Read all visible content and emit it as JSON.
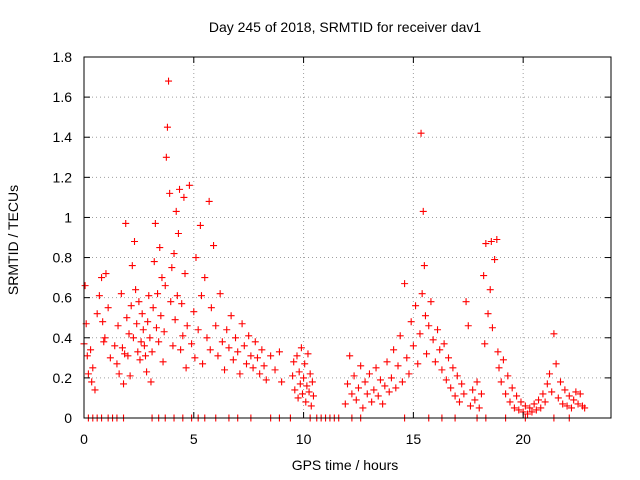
{
  "chart_data": {
    "type": "scatter",
    "title": "Day 245 of 2018, SRMTID for receiver dav1",
    "xlabel": "GPS time / hours",
    "ylabel": "SRMTID / TECUs",
    "xlim": [
      0,
      24
    ],
    "ylim": [
      0,
      1.8
    ],
    "xticks": [
      0,
      5,
      10,
      15,
      20
    ],
    "xtick_labels": [
      "0",
      "5",
      "10",
      "15",
      "20"
    ],
    "yticks": [
      0,
      0.2,
      0.4,
      0.6,
      0.8,
      1,
      1.2,
      1.4,
      1.6,
      1.8
    ],
    "ytick_labels": [
      "0",
      "0.2",
      "0.4",
      "0.6",
      "0.8",
      "1",
      "1.2",
      "1.4",
      "1.6",
      "1.8"
    ],
    "grid": true,
    "marker": "+",
    "series": [
      {
        "name": "dav1",
        "color": "#ff0000",
        "points": [
          [
            0.0,
            0.37
          ],
          [
            0.05,
            0.66
          ],
          [
            0.1,
            0.47
          ],
          [
            0.15,
            0.31
          ],
          [
            0.2,
            0.22
          ],
          [
            0.3,
            0.34
          ],
          [
            0.35,
            0.18
          ],
          [
            0.4,
            0.25
          ],
          [
            0.5,
            0.14
          ],
          [
            0.6,
            0.52
          ],
          [
            0.7,
            0.61
          ],
          [
            0.8,
            0.7
          ],
          [
            0.85,
            0.48
          ],
          [
            0.9,
            0.38
          ],
          [
            0.95,
            0.4
          ],
          [
            1.0,
            0.72
          ],
          [
            1.1,
            0.55
          ],
          [
            1.2,
            0.3
          ],
          [
            1.4,
            0.36
          ],
          [
            1.5,
            0.27
          ],
          [
            1.55,
            0.46
          ],
          [
            1.6,
            0.22
          ],
          [
            1.7,
            0.62
          ],
          [
            1.75,
            0.35
          ],
          [
            1.8,
            0.17
          ],
          [
            1.85,
            0.32
          ],
          [
            1.9,
            0.97
          ],
          [
            1.95,
            0.5
          ],
          [
            2.0,
            0.31
          ],
          [
            2.05,
            0.42
          ],
          [
            2.1,
            0.21
          ],
          [
            2.15,
            0.56
          ],
          [
            2.2,
            0.76
          ],
          [
            2.25,
            0.4
          ],
          [
            2.3,
            0.88
          ],
          [
            2.35,
            0.64
          ],
          [
            2.4,
            0.47
          ],
          [
            2.45,
            0.33
          ],
          [
            2.5,
            0.58
          ],
          [
            2.55,
            0.29
          ],
          [
            2.6,
            0.38
          ],
          [
            2.65,
            0.52
          ],
          [
            2.7,
            0.44
          ],
          [
            2.75,
            0.36
          ],
          [
            2.8,
            0.31
          ],
          [
            2.85,
            0.23
          ],
          [
            2.9,
            0.48
          ],
          [
            2.95,
            0.61
          ],
          [
            3.0,
            0.4
          ],
          [
            3.05,
            0.18
          ],
          [
            3.1,
            0.33
          ],
          [
            3.15,
            0.55
          ],
          [
            3.2,
            0.78
          ],
          [
            3.25,
            0.97
          ],
          [
            3.3,
            0.45
          ],
          [
            3.35,
            0.62
          ],
          [
            3.4,
            0.38
          ],
          [
            3.45,
            0.85
          ],
          [
            3.5,
            0.51
          ],
          [
            3.55,
            0.7
          ],
          [
            3.6,
            0.28
          ],
          [
            3.65,
            0.43
          ],
          [
            3.7,
            0.66
          ],
          [
            3.75,
            1.3
          ],
          [
            3.8,
            1.45
          ],
          [
            3.85,
            1.68
          ],
          [
            3.9,
            1.12
          ],
          [
            3.95,
            0.58
          ],
          [
            4.0,
            0.75
          ],
          [
            4.05,
            0.36
          ],
          [
            4.1,
            0.82
          ],
          [
            4.15,
            0.49
          ],
          [
            4.2,
            1.03
          ],
          [
            4.25,
            0.61
          ],
          [
            4.3,
            0.92
          ],
          [
            4.35,
            1.14
          ],
          [
            4.4,
            0.34
          ],
          [
            4.45,
            0.57
          ],
          [
            4.5,
            0.41
          ],
          [
            4.55,
            1.1
          ],
          [
            4.6,
            0.72
          ],
          [
            4.65,
            0.25
          ],
          [
            4.7,
            0.46
          ],
          [
            4.8,
            1.16
          ],
          [
            4.9,
            0.37
          ],
          [
            5.0,
            0.53
          ],
          [
            5.05,
            0.3
          ],
          [
            5.1,
            0.8
          ],
          [
            5.2,
            0.44
          ],
          [
            5.3,
            0.96
          ],
          [
            5.35,
            0.61
          ],
          [
            5.4,
            0.27
          ],
          [
            5.5,
            0.7
          ],
          [
            5.6,
            0.4
          ],
          [
            5.7,
            1.08
          ],
          [
            5.75,
            0.34
          ],
          [
            5.8,
            0.55
          ],
          [
            5.9,
            0.86
          ],
          [
            6.0,
            0.46
          ],
          [
            6.1,
            0.31
          ],
          [
            6.2,
            0.62
          ],
          [
            6.3,
            0.38
          ],
          [
            6.4,
            0.24
          ],
          [
            6.5,
            0.44
          ],
          [
            6.6,
            0.35
          ],
          [
            6.7,
            0.51
          ],
          [
            6.8,
            0.29
          ],
          [
            6.9,
            0.4
          ],
          [
            7.0,
            0.33
          ],
          [
            7.1,
            0.22
          ],
          [
            7.2,
            0.47
          ],
          [
            7.3,
            0.36
          ],
          [
            7.4,
            0.27
          ],
          [
            7.5,
            0.41
          ],
          [
            7.6,
            0.31
          ],
          [
            7.7,
            0.25
          ],
          [
            7.8,
            0.38
          ],
          [
            7.9,
            0.3
          ],
          [
            8.0,
            0.22
          ],
          [
            8.1,
            0.34
          ],
          [
            8.2,
            0.26
          ],
          [
            8.3,
            0.19
          ],
          [
            8.5,
            0.31
          ],
          [
            8.7,
            0.24
          ],
          [
            8.9,
            0.33
          ],
          [
            9.0,
            0.18
          ],
          [
            9.5,
            0.21
          ],
          [
            9.55,
            0.28
          ],
          [
            9.6,
            0.14
          ],
          [
            9.7,
            0.31
          ],
          [
            9.75,
            0.1
          ],
          [
            9.8,
            0.23
          ],
          [
            9.85,
            0.17
          ],
          [
            9.9,
            0.35
          ],
          [
            9.95,
            0.12
          ],
          [
            10.0,
            0.2
          ],
          [
            10.05,
            0.27
          ],
          [
            10.1,
            0.08
          ],
          [
            10.15,
            0.16
          ],
          [
            10.2,
            0.32
          ],
          [
            10.25,
            0.13
          ],
          [
            10.3,
            0.22
          ],
          [
            10.35,
            0.06
          ],
          [
            10.4,
            0.18
          ],
          [
            10.45,
            0.11
          ],
          [
            11.9,
            0.07
          ],
          [
            12.0,
            0.17
          ],
          [
            12.1,
            0.31
          ],
          [
            12.2,
            0.12
          ],
          [
            12.3,
            0.21
          ],
          [
            12.4,
            0.09
          ],
          [
            12.5,
            0.15
          ],
          [
            12.6,
            0.26
          ],
          [
            12.7,
            0.05
          ],
          [
            12.8,
            0.18
          ],
          [
            12.9,
            0.12
          ],
          [
            13.0,
            0.22
          ],
          [
            13.1,
            0.08
          ],
          [
            13.2,
            0.14
          ],
          [
            13.3,
            0.25
          ],
          [
            13.4,
            0.11
          ],
          [
            13.5,
            0.19
          ],
          [
            13.6,
            0.07
          ],
          [
            13.7,
            0.16
          ],
          [
            13.8,
            0.28
          ],
          [
            13.9,
            0.13
          ],
          [
            14.0,
            0.2
          ],
          [
            14.1,
            0.34
          ],
          [
            14.2,
            0.15
          ],
          [
            14.3,
            0.26
          ],
          [
            14.4,
            0.41
          ],
          [
            14.5,
            0.18
          ],
          [
            14.6,
            0.67
          ],
          [
            14.7,
            0.3
          ],
          [
            14.8,
            0.22
          ],
          [
            14.9,
            0.48
          ],
          [
            15.0,
            0.36
          ],
          [
            15.1,
            0.56
          ],
          [
            15.2,
            0.27
          ],
          [
            15.3,
            0.42
          ],
          [
            15.35,
            1.42
          ],
          [
            15.4,
            0.62
          ],
          [
            15.45,
            1.03
          ],
          [
            15.5,
            0.76
          ],
          [
            15.55,
            0.51
          ],
          [
            15.6,
            0.32
          ],
          [
            15.7,
            0.46
          ],
          [
            15.8,
            0.58
          ],
          [
            15.9,
            0.39
          ],
          [
            16.0,
            0.28
          ],
          [
            16.1,
            0.44
          ],
          [
            16.2,
            0.34
          ],
          [
            16.3,
            0.24
          ],
          [
            16.4,
            0.37
          ],
          [
            16.5,
            0.19
          ],
          [
            16.6,
            0.3
          ],
          [
            16.7,
            0.15
          ],
          [
            16.8,
            0.25
          ],
          [
            16.9,
            0.11
          ],
          [
            17.0,
            0.21
          ],
          [
            17.1,
            0.08
          ],
          [
            17.2,
            0.17
          ],
          [
            17.3,
            0.12
          ],
          [
            17.4,
            0.58
          ],
          [
            17.5,
            0.46
          ],
          [
            17.6,
            0.06
          ],
          [
            17.7,
            0.14
          ],
          [
            17.8,
            0.09
          ],
          [
            17.9,
            0.18
          ],
          [
            18.0,
            0.05
          ],
          [
            18.1,
            0.12
          ],
          [
            18.2,
            0.71
          ],
          [
            18.25,
            0.37
          ],
          [
            18.3,
            0.87
          ],
          [
            18.4,
            0.52
          ],
          [
            18.5,
            0.64
          ],
          [
            18.55,
            0.88
          ],
          [
            18.6,
            0.45
          ],
          [
            18.7,
            0.79
          ],
          [
            18.8,
            0.89
          ],
          [
            18.85,
            0.33
          ],
          [
            18.9,
            0.25
          ],
          [
            19.0,
            0.18
          ],
          [
            19.1,
            0.29
          ],
          [
            19.2,
            0.12
          ],
          [
            19.3,
            0.21
          ],
          [
            19.4,
            0.08
          ],
          [
            19.5,
            0.15
          ],
          [
            19.6,
            0.05
          ],
          [
            19.7,
            0.11
          ],
          [
            19.8,
            0.04
          ],
          [
            19.9,
            0.08
          ],
          [
            20.0,
            0.03
          ],
          [
            20.1,
            0.06
          ],
          [
            20.2,
            0.02
          ],
          [
            20.3,
            0.05
          ],
          [
            20.4,
            0.03
          ],
          [
            20.5,
            0.07
          ],
          [
            20.6,
            0.04
          ],
          [
            20.7,
            0.09
          ],
          [
            20.8,
            0.05
          ],
          [
            20.9,
            0.12
          ],
          [
            21.0,
            0.08
          ],
          [
            21.1,
            0.17
          ],
          [
            21.2,
            0.22
          ],
          [
            21.3,
            0.13
          ],
          [
            21.4,
            0.42
          ],
          [
            21.5,
            0.27
          ],
          [
            21.6,
            0.1
          ],
          [
            21.7,
            0.18
          ],
          [
            21.8,
            0.07
          ],
          [
            21.9,
            0.14
          ],
          [
            22.0,
            0.06
          ],
          [
            22.1,
            0.11
          ],
          [
            22.2,
            0.05
          ],
          [
            22.3,
            0.09
          ],
          [
            22.4,
            0.13
          ],
          [
            22.5,
            0.07
          ],
          [
            22.6,
            0.12
          ],
          [
            22.7,
            0.06
          ],
          [
            22.8,
            0.05
          ],
          [
            0.2,
            0.0
          ],
          [
            0.4,
            0.0
          ],
          [
            0.6,
            0.0
          ],
          [
            0.8,
            0.0
          ],
          [
            1.1,
            0.0
          ],
          [
            1.3,
            0.0
          ],
          [
            1.5,
            0.0
          ],
          [
            1.8,
            0.0
          ],
          [
            3.1,
            0.0
          ],
          [
            3.4,
            0.0
          ],
          [
            3.7,
            0.0
          ],
          [
            4.1,
            0.0
          ],
          [
            4.5,
            0.0
          ],
          [
            4.9,
            0.0
          ],
          [
            5.2,
            0.0
          ],
          [
            5.5,
            0.0
          ],
          [
            6.0,
            0.0
          ],
          [
            6.6,
            0.0
          ],
          [
            7.0,
            0.0
          ],
          [
            7.6,
            0.0
          ],
          [
            8.5,
            0.0
          ],
          [
            8.9,
            0.0
          ],
          [
            9.4,
            0.0
          ],
          [
            10.3,
            0.0
          ],
          [
            10.6,
            0.0
          ],
          [
            10.8,
            0.0
          ],
          [
            11.0,
            0.0
          ],
          [
            11.2,
            0.0
          ],
          [
            11.4,
            0.0
          ],
          [
            11.6,
            0.0
          ],
          [
            12.2,
            0.0
          ],
          [
            12.6,
            0.0
          ],
          [
            14.6,
            0.0
          ],
          [
            15.7,
            0.0
          ],
          [
            16.3,
            0.0
          ],
          [
            16.9,
            0.0
          ],
          [
            17.9,
            0.0
          ],
          [
            18.3,
            0.0
          ],
          [
            19.2,
            0.0
          ],
          [
            20.1,
            0.0
          ],
          [
            21.4,
            0.0
          ],
          [
            22.1,
            0.0
          ]
        ]
      }
    ]
  }
}
